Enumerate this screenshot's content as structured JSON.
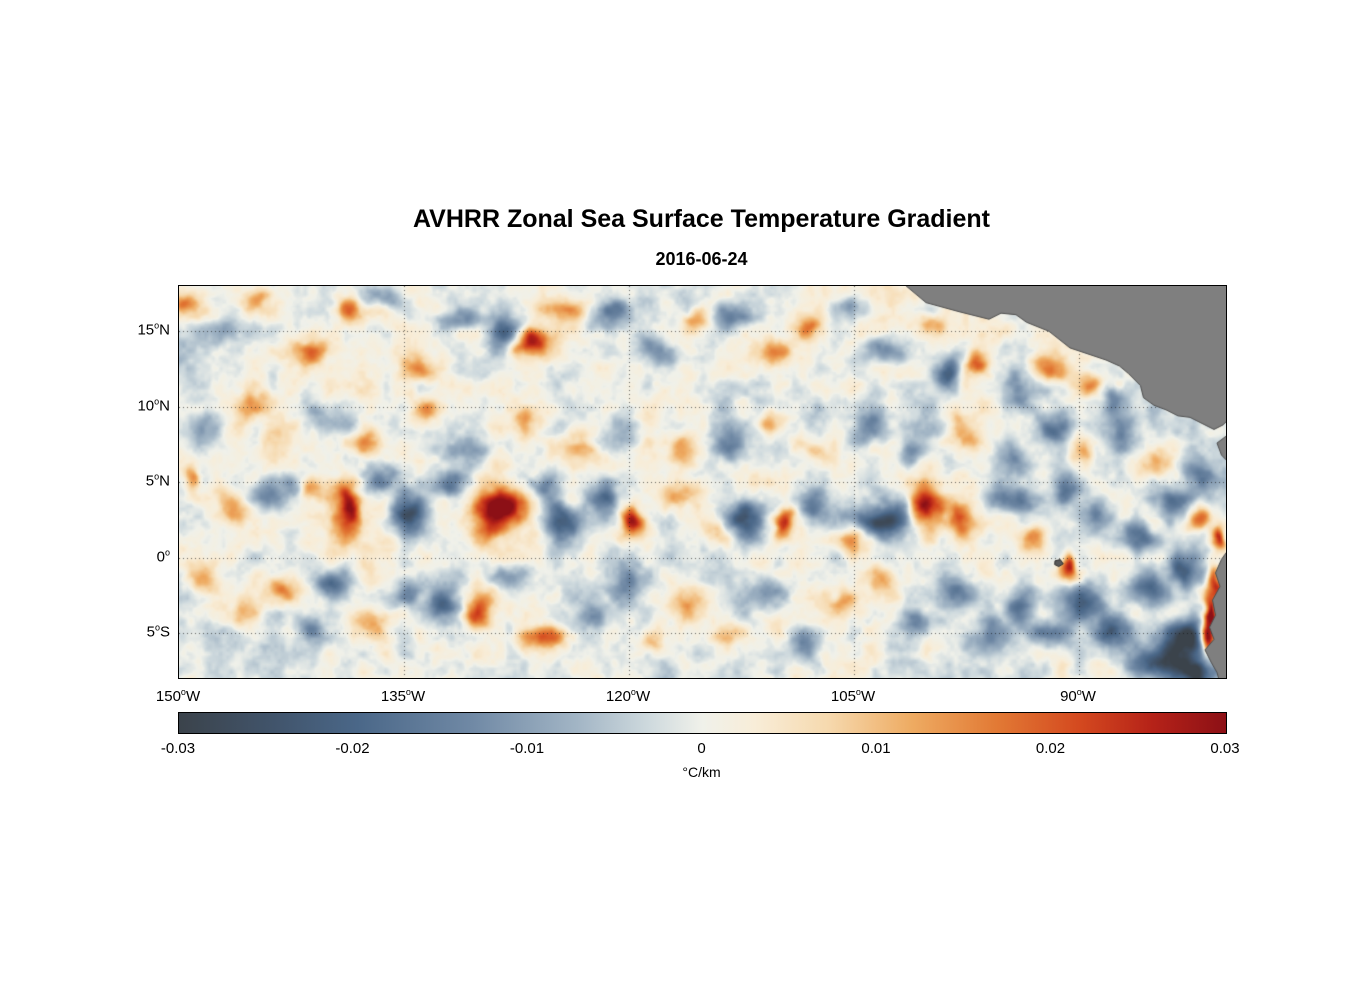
{
  "chart_data": {
    "type": "heatmap",
    "title": "AVHRR Zonal Sea Surface Temperature Gradient",
    "subtitle_date": "2016-06-24",
    "variable": "zonal sea surface temperature gradient",
    "deg_symbol": "o",
    "lon_range": [
      -150,
      -80.2
    ],
    "lat_range": [
      -8,
      18
    ],
    "x_axis": {
      "ticks": [
        {
          "text": "150",
          "dir": "W",
          "lon": -150
        },
        {
          "text": "135",
          "dir": "W",
          "lon": -135
        },
        {
          "text": "120",
          "dir": "W",
          "lon": -120
        },
        {
          "text": "105",
          "dir": "W",
          "lon": -105
        },
        {
          "text": "90",
          "dir": "W",
          "lon": -90
        }
      ]
    },
    "y_axis": {
      "ticks": [
        {
          "text": "15",
          "dir": "N",
          "lat": 15
        },
        {
          "text": "10",
          "dir": "N",
          "lat": 10
        },
        {
          "text": "5",
          "dir": "N",
          "lat": 5
        },
        {
          "text": "0",
          "dir": "",
          "lat": 0
        },
        {
          "text": "5",
          "dir": "S",
          "lat": -5
        }
      ]
    },
    "grid": {
      "lon_lines": [
        -135,
        -120,
        -105,
        -90
      ],
      "lat_lines": [
        15,
        10,
        5,
        0,
        -5
      ],
      "style": "dotted"
    },
    "colorbar": {
      "min": -0.03,
      "max": 0.03,
      "ticks": [
        "-0.03",
        "-0.02",
        "-0.01",
        "0",
        "0.01",
        "0.02",
        "0.03"
      ],
      "label": "°C/km",
      "stops": [
        {
          "t": 0.0,
          "c": "#3b434b"
        },
        {
          "t": 0.09,
          "c": "#41546b"
        },
        {
          "t": 0.17,
          "c": "#4a6788"
        },
        {
          "t": 0.28,
          "c": "#7089a5"
        },
        {
          "t": 0.38,
          "c": "#a2b5c5"
        },
        {
          "t": 0.45,
          "c": "#cfdade"
        },
        {
          "t": 0.5,
          "c": "#f0f1ea"
        },
        {
          "t": 0.55,
          "c": "#f8edd8"
        },
        {
          "t": 0.62,
          "c": "#f6d9ae"
        },
        {
          "t": 0.7,
          "c": "#eeab62"
        },
        {
          "t": 0.78,
          "c": "#e27a35"
        },
        {
          "t": 0.86,
          "c": "#d4491f"
        },
        {
          "t": 0.93,
          "c": "#b52218"
        },
        {
          "t": 1.0,
          "c": "#8c1016"
        }
      ]
    },
    "land": {
      "fill": "#7f7f7f",
      "edge": "#4d4d4d",
      "polygons": [
        [
          [
            -102,
            18.4
          ],
          [
            -100.2,
            16.9
          ],
          [
            -98,
            16.3
          ],
          [
            -96,
            15.8
          ],
          [
            -95.2,
            16.2
          ],
          [
            -94.2,
            16.1
          ],
          [
            -93.5,
            15.6
          ],
          [
            -92,
            15
          ],
          [
            -90.6,
            13.9
          ],
          [
            -89.4,
            13.5
          ],
          [
            -88.2,
            13.1
          ],
          [
            -87.3,
            12.7
          ],
          [
            -86.7,
            12.2
          ],
          [
            -85.9,
            11.4
          ],
          [
            -85.7,
            10.6
          ],
          [
            -85,
            10.1
          ],
          [
            -84.2,
            9.8
          ],
          [
            -83.4,
            9.4
          ],
          [
            -82.6,
            9.3
          ],
          [
            -81.8,
            8.9
          ],
          [
            -81,
            8.5
          ],
          [
            -80.4,
            8.8
          ],
          [
            -80,
            9.2
          ],
          [
            -80,
            18.4
          ]
        ],
        [
          [
            -80,
            8.2
          ],
          [
            -80.8,
            7.6
          ],
          [
            -80.5,
            6.8
          ],
          [
            -80,
            6.3
          ]
        ],
        [
          [
            -80,
            0.6
          ],
          [
            -80.5,
            -0.1
          ],
          [
            -80.9,
            -1
          ],
          [
            -80.6,
            -1.9
          ],
          [
            -81.1,
            -2.8
          ],
          [
            -80.9,
            -3.8
          ],
          [
            -81.3,
            -4.6
          ],
          [
            -81,
            -5.4
          ],
          [
            -81.6,
            -6.1
          ],
          [
            -81.2,
            -6.9
          ],
          [
            -80.8,
            -7.6
          ],
          [
            -80.6,
            -8.3
          ],
          [
            -80,
            -8.3
          ]
        ]
      ],
      "islands": [
        [
          [
            -91.6,
            -0.2
          ],
          [
            -91.25,
            -0.12
          ],
          [
            -91.05,
            -0.4
          ],
          [
            -91.35,
            -0.58
          ],
          [
            -91.62,
            -0.45
          ]
        ]
      ]
    },
    "noise": {
      "coarse_amp": 0.004,
      "coarse_scale": 0.22,
      "fine_amp": 0.0065,
      "fine_scale": 0.8,
      "warp": 1.1
    },
    "features_lon_lat_amp_rx_ry": [
      [
        -149.5,
        16.5,
        0.016,
        0.9,
        0.9
      ],
      [
        -147,
        14.8,
        -0.012,
        1.2,
        0.9
      ],
      [
        -144.5,
        17,
        0.014,
        1,
        0.7
      ],
      [
        -141.5,
        13.6,
        0.016,
        1.4,
        0.8
      ],
      [
        -139,
        16.3,
        0.018,
        0.9,
        0.8
      ],
      [
        -136.5,
        17.4,
        -0.014,
        1.2,
        0.8
      ],
      [
        -134,
        12.5,
        0.012,
        1,
        0.9
      ],
      [
        -131.5,
        16,
        -0.014,
        1.4,
        0.9
      ],
      [
        -128.5,
        15.2,
        -0.02,
        1,
        1.2
      ],
      [
        -126.2,
        13.9,
        0.028,
        1.1,
        1
      ],
      [
        -124.5,
        16.8,
        0.016,
        0.9,
        0.8
      ],
      [
        -121.5,
        16.3,
        -0.018,
        1.6,
        0.9
      ],
      [
        -118.5,
        14,
        -0.012,
        1.2,
        1
      ],
      [
        -116,
        15.6,
        0.015,
        1,
        0.8
      ],
      [
        -113,
        16.2,
        -0.014,
        1.4,
        0.9
      ],
      [
        -110.5,
        13.2,
        0.012,
        1,
        0.9
      ],
      [
        -108,
        15,
        0.016,
        0.9,
        0.8
      ],
      [
        -105.5,
        16.5,
        -0.012,
        1.2,
        0.8
      ],
      [
        -103,
        13.5,
        -0.014,
        1.1,
        1
      ],
      [
        -100.5,
        15.8,
        0.014,
        0.9,
        0.8
      ],
      [
        -98.8,
        12.4,
        -0.022,
        1.2,
        1.1
      ],
      [
        -96.2,
        12.8,
        0.02,
        1,
        0.9
      ],
      [
        -94,
        11.2,
        -0.016,
        1.1,
        1
      ],
      [
        -91.5,
        12.8,
        0.014,
        0.9,
        0.8
      ],
      [
        -89.3,
        11.6,
        0.016,
        0.9,
        0.8
      ],
      [
        -87.5,
        10.5,
        -0.014,
        1,
        0.9
      ],
      [
        -148,
        8.5,
        -0.012,
        1.3,
        1
      ],
      [
        -145,
        9.8,
        0.012,
        1,
        0.8
      ],
      [
        -143,
        7,
        0.01,
        1.4,
        1.1
      ],
      [
        -140,
        9,
        -0.01,
        1.3,
        1
      ],
      [
        -137,
        7.5,
        0.012,
        1.1,
        0.9
      ],
      [
        -133.5,
        9.3,
        0.014,
        1,
        0.8
      ],
      [
        -130,
        7,
        -0.01,
        1.4,
        1
      ],
      [
        -127,
        8.8,
        0.012,
        1.1,
        0.9
      ],
      [
        -123.5,
        7.2,
        0.012,
        1.3,
        1
      ],
      [
        -120,
        8.8,
        -0.012,
        1.2,
        0.9
      ],
      [
        -117,
        7,
        0.011,
        1.3,
        1
      ],
      [
        -113.5,
        8,
        -0.013,
        1.2,
        1
      ],
      [
        -110,
        9,
        0.012,
        1,
        0.9
      ],
      [
        -107,
        7.5,
        0.011,
        1.2,
        1
      ],
      [
        -104,
        8.7,
        -0.012,
        1.2,
        0.9
      ],
      [
        -101,
        7,
        -0.013,
        1.2,
        1
      ],
      [
        -98,
        8.5,
        0.012,
        1,
        0.9
      ],
      [
        -95,
        7,
        -0.014,
        1.2,
        1
      ],
      [
        -92,
        8.8,
        -0.016,
        1.3,
        1
      ],
      [
        -89.5,
        7.2,
        0.014,
        1,
        1
      ],
      [
        -86.5,
        8.8,
        -0.015,
        1.1,
        1
      ],
      [
        -84.5,
        6.5,
        0.013,
        1,
        1
      ],
      [
        -82,
        5.5,
        -0.016,
        1.1,
        1.2
      ],
      [
        -149.3,
        5,
        0.018,
        0.7,
        0.9
      ],
      [
        -146.5,
        3.5,
        0.012,
        1.2,
        1.2
      ],
      [
        -143.5,
        4.8,
        -0.014,
        1.2,
        0.9
      ],
      [
        -141,
        4.3,
        0.018,
        0.8,
        0.9
      ],
      [
        -138.8,
        3,
        0.03,
        1.2,
        1.6
      ],
      [
        -136,
        5,
        -0.016,
        1.2,
        0.9
      ],
      [
        -134.3,
        2.6,
        -0.028,
        1.1,
        1.4
      ],
      [
        -131.5,
        4.8,
        -0.018,
        1.3,
        0.9
      ],
      [
        -128.6,
        3.1,
        0.03,
        1.4,
        1.6
      ],
      [
        -125.8,
        4.5,
        -0.016,
        1,
        1
      ],
      [
        -124.3,
        2.1,
        -0.024,
        1.3,
        1.2
      ],
      [
        -121.3,
        3.8,
        -0.022,
        1.1,
        1.3
      ],
      [
        -119.6,
        2.1,
        0.028,
        1,
        1.2
      ],
      [
        -116.5,
        4.2,
        0.014,
        1.3,
        0.9
      ],
      [
        -114.5,
        1.5,
        0.012,
        1,
        0.9
      ],
      [
        -112.4,
        2.6,
        -0.026,
        1.3,
        1.2
      ],
      [
        -109.9,
        2.5,
        0.026,
        0.8,
        0.9
      ],
      [
        -107.2,
        3.6,
        -0.018,
        1.1,
        1
      ],
      [
        -105.3,
        1.2,
        0.014,
        0.9,
        0.9
      ],
      [
        -103.4,
        2.6,
        -0.026,
        1.6,
        1.3
      ],
      [
        -100.4,
        3,
        0.026,
        1.2,
        1.2
      ],
      [
        -97.6,
        2.4,
        0.02,
        0.9,
        1
      ],
      [
        -95.2,
        4.2,
        -0.018,
        1,
        0.9
      ],
      [
        -93.5,
        1.3,
        0.016,
        0.9,
        0.9
      ],
      [
        -91,
        4.5,
        -0.014,
        1.1,
        0.9
      ],
      [
        -88.5,
        2.8,
        -0.016,
        1.2,
        1
      ],
      [
        -86,
        1.2,
        -0.018,
        1.1,
        0.9
      ],
      [
        -83.8,
        3.8,
        -0.016,
        1,
        1
      ],
      [
        -82.2,
        2.6,
        0.02,
        0.7,
        0.9
      ],
      [
        -80.7,
        0.9,
        0.028,
        0.5,
        1
      ],
      [
        -148.5,
        -1.5,
        0.012,
        1.1,
        1
      ],
      [
        -146,
        -3.5,
        0.01,
        1.2,
        1
      ],
      [
        -143.3,
        -2.2,
        0.014,
        1,
        0.9
      ],
      [
        -141,
        -5,
        -0.012,
        1.2,
        0.9
      ],
      [
        -139.5,
        -1.4,
        -0.022,
        1.1,
        1.1
      ],
      [
        -137,
        -4.2,
        0.013,
        1,
        0.9
      ],
      [
        -134.5,
        -1.8,
        -0.012,
        1.2,
        1
      ],
      [
        -132,
        -2.6,
        -0.018,
        1.3,
        1.1
      ],
      [
        -129.6,
        -3.6,
        0.022,
        0.9,
        1.3
      ],
      [
        -127.5,
        -1.2,
        -0.012,
        1.1,
        0.9
      ],
      [
        -125.8,
        -5.6,
        0.02,
        1.4,
        0.9
      ],
      [
        -123,
        -3.8,
        -0.012,
        1.3,
        1
      ],
      [
        -120.5,
        -1.8,
        -0.014,
        1.2,
        1
      ],
      [
        -118,
        -5.2,
        0.012,
        1.2,
        0.9
      ],
      [
        -115.5,
        -2.8,
        0.012,
        1.1,
        1
      ],
      [
        -113,
        -4.8,
        0.011,
        1.2,
        0.9
      ],
      [
        -110.5,
        -2.2,
        -0.012,
        1.2,
        1
      ],
      [
        -108,
        -5.5,
        -0.013,
        1.1,
        0.9
      ],
      [
        -105.8,
        -3,
        0.012,
        1,
        1
      ],
      [
        -103.5,
        -1.6,
        0.013,
        1,
        0.9
      ],
      [
        -101,
        -4.2,
        -0.014,
        1.3,
        1
      ],
      [
        -98.5,
        -2.4,
        -0.016,
        1.1,
        1
      ],
      [
        -96,
        -5,
        -0.014,
        1.3,
        1
      ],
      [
        -94,
        -3,
        -0.018,
        1.2,
        1.1
      ],
      [
        -91.8,
        -4.8,
        -0.016,
        1.3,
        1
      ],
      [
        -91,
        -0.6,
        0.026,
        0.55,
        0.6
      ],
      [
        -90,
        -2.6,
        -0.02,
        1.3,
        1.1
      ],
      [
        -87.8,
        -4.6,
        -0.022,
        1.5,
        1.2
      ],
      [
        -85.5,
        -1.8,
        -0.02,
        1.3,
        1.1
      ],
      [
        -84.8,
        -6.6,
        -0.026,
        1.8,
        1.1
      ],
      [
        -83,
        -5.2,
        -0.028,
        1.6,
        1.2
      ],
      [
        -82.3,
        -7.6,
        -0.03,
        1.6,
        1
      ],
      [
        -82.6,
        -0.9,
        -0.02,
        1,
        1
      ],
      [
        -81.4,
        -3.4,
        0.032,
        0.55,
        1.3
      ],
      [
        -81.1,
        -5.1,
        0.032,
        0.5,
        1
      ],
      [
        -80.9,
        -1.6,
        0.026,
        0.5,
        0.9
      ]
    ]
  }
}
